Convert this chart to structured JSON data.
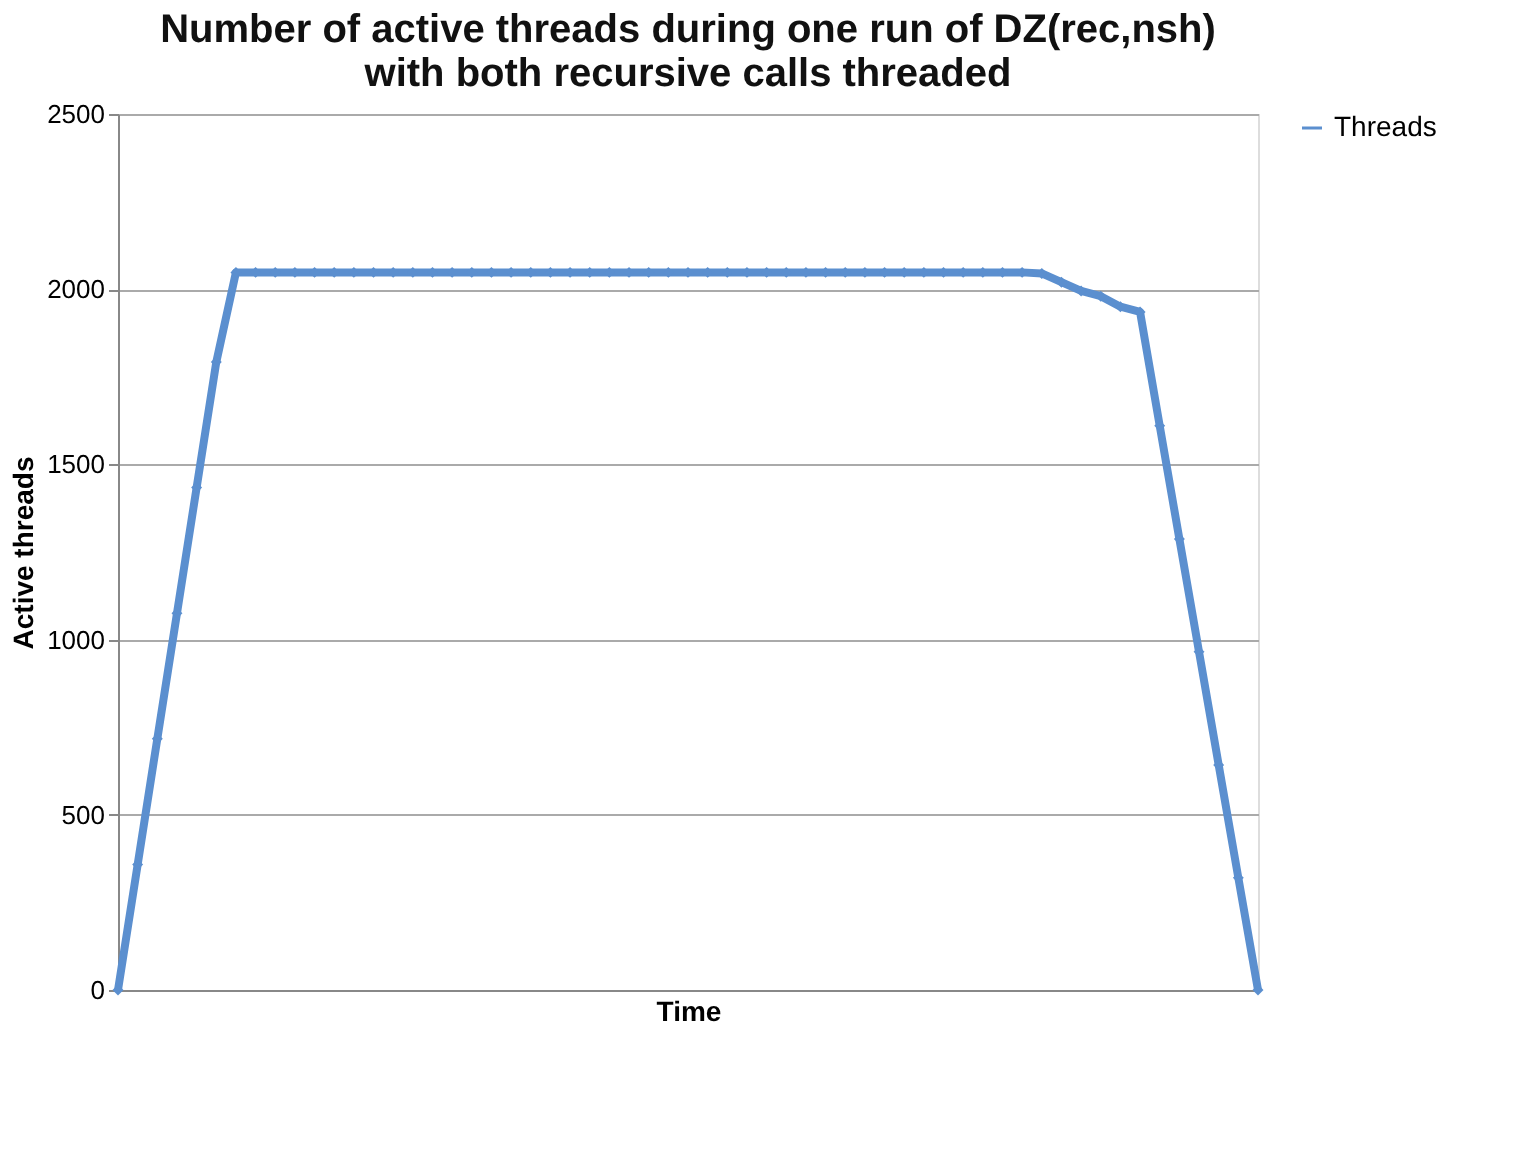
{
  "chart_data": {
    "type": "line",
    "title": [
      "Number of active threads during one run of DZ(rec,nsh)",
      "with both recursive calls threaded"
    ],
    "xlabel": "Time",
    "ylabel": "Active threads",
    "categories": [
      null,
      null,
      null,
      null,
      null,
      null,
      null,
      null,
      null,
      null,
      null,
      null,
      null,
      null,
      null,
      null,
      null,
      null,
      null,
      null,
      null,
      null,
      null,
      null,
      null,
      null,
      null,
      null,
      null,
      null,
      null,
      null,
      null,
      null,
      null,
      null,
      null,
      null,
      null,
      null,
      null,
      null,
      null,
      null,
      null,
      null,
      null,
      null,
      null,
      null,
      null,
      null,
      null,
      null,
      null,
      null,
      null,
      null,
      null
    ],
    "series": [
      {
        "name": "Threads",
        "color": "#5b8fcf",
        "values": [
          0,
          358,
          717,
          1075,
          1434,
          1792,
          2048,
          2048,
          2048,
          2048,
          2048,
          2048,
          2048,
          2048,
          2048,
          2048,
          2048,
          2048,
          2048,
          2048,
          2048,
          2048,
          2048,
          2048,
          2048,
          2048,
          2048,
          2048,
          2048,
          2048,
          2048,
          2048,
          2048,
          2048,
          2048,
          2048,
          2048,
          2048,
          2048,
          2048,
          2048,
          2048,
          2048,
          2048,
          2048,
          2048,
          2048,
          2045,
          2020,
          1995,
          1980,
          1950,
          1935,
          1610,
          1287,
          965,
          642,
          320,
          0
        ]
      }
    ],
    "ylim": [
      0,
      2500
    ],
    "yticks": [
      0,
      500,
      1000,
      1500,
      2000,
      2500
    ],
    "grid": "y",
    "legend": "right",
    "marker": "diamond",
    "line_style": "solid",
    "tick_labels": "y"
  }
}
